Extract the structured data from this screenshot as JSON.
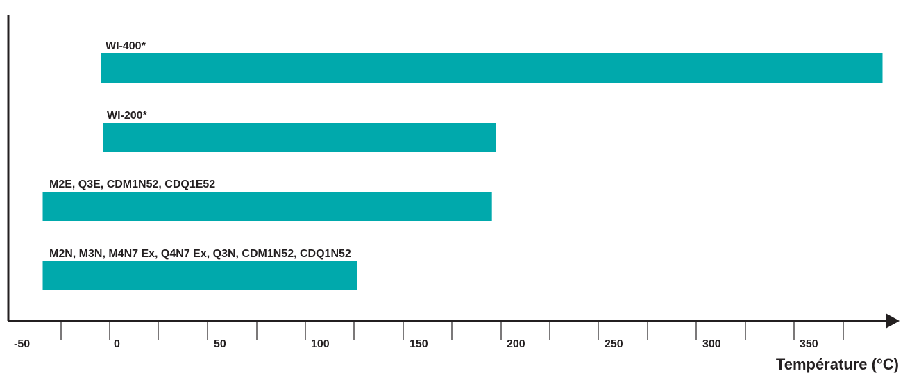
{
  "chart_data": {
    "type": "bar",
    "orientation": "horizontal",
    "title": "",
    "xlabel": "Température (°C)",
    "ylabel": "",
    "xlim": [
      -55,
      395
    ],
    "grid": false,
    "legend": "none",
    "bar_color": "#00a9ac",
    "axis_color": "#231f20",
    "tick_values": [
      -50,
      0,
      50,
      100,
      150,
      200,
      250,
      300,
      350
    ],
    "tick_labels": [
      "-50",
      "0",
      "50",
      "100",
      "150",
      "200",
      "250",
      "300",
      "350"
    ],
    "bars": [
      {
        "label": "WI-400*",
        "start": -5,
        "end": 395
      },
      {
        "label": "WI-200*",
        "start": -4,
        "end": 197
      },
      {
        "label": "M2E, Q3E, CDM1N52, CDQ1E52",
        "start": -35,
        "end": 195
      },
      {
        "label": "M2N, M3N, M4N7 Ex, Q4N7 Ex, Q3N, CDM1N52, CDQ1N52",
        "start": -35,
        "end": 126
      }
    ]
  }
}
